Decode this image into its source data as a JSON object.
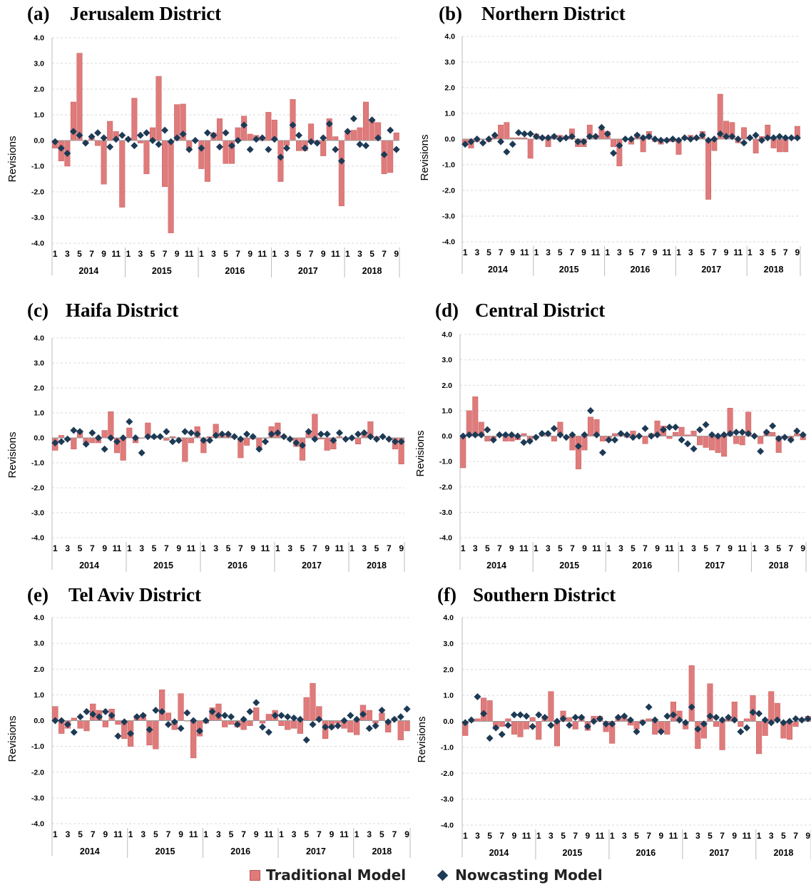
{
  "legend": {
    "traditional": "Traditional Model",
    "nowcasting": "Nowcasting Model"
  },
  "colors": {
    "bar": "#e07b7b",
    "bar_edge": "#c65b5b",
    "marker": "#1d3a55"
  },
  "chart_data": [
    {
      "type": "bar",
      "letter": "(a)",
      "title": "Jerusalem District",
      "ylabel": "Revisions",
      "ylim": [
        -4,
        4
      ],
      "ticks": [
        "4.0",
        "3.0",
        "2.0",
        "1.0",
        "0.0",
        "-1.0",
        "-2.0",
        "-3.0",
        "-4.0"
      ],
      "month_labels": [
        "1",
        "3",
        "5",
        "7",
        "9",
        "11"
      ],
      "years": [
        "2014",
        "2015",
        "2016",
        "2017",
        "2018"
      ],
      "series": [
        {
          "name": "Traditional Model",
          "values": [
            -0.3,
            -0.8,
            -1.0,
            1.5,
            3.4,
            -0.1,
            0.1,
            -0.2,
            -1.7,
            0.75,
            0.35,
            -2.6,
            0.1,
            1.65,
            -0.1,
            -1.3,
            0.5,
            2.5,
            -1.8,
            -3.6,
            1.4,
            1.42,
            -0.3,
            0.0,
            -1.1,
            -1.6,
            0.3,
            0.85,
            -0.9,
            -0.9,
            0.5,
            0.95,
            0.25,
            0.2,
            0.1,
            1.1,
            0.8,
            -1.6,
            -0.2,
            1.6,
            -0.4,
            -0.4,
            0.65,
            -0.1,
            -0.6,
            0.85,
            0.15,
            -2.55,
            0.3,
            0.4,
            0.5,
            1.5,
            0.8,
            0.7,
            -1.3,
            -1.25,
            0.3
          ]
        },
        {
          "name": "Nowcasting Model",
          "values": [
            -0.05,
            -0.3,
            -0.5,
            0.35,
            0.2,
            -0.1,
            0.15,
            0.3,
            0.1,
            -0.25,
            0.05,
            0.2,
            0.05,
            -0.2,
            0.2,
            0.3,
            0.0,
            -0.15,
            0.4,
            -0.05,
            0.1,
            0.25,
            -0.35,
            0.0,
            -0.3,
            0.3,
            0.2,
            -0.25,
            0.3,
            -0.2,
            0.0,
            0.6,
            -0.35,
            0.05,
            0.1,
            -0.35,
            0.05,
            -0.65,
            -0.3,
            0.6,
            0.2,
            -0.3,
            -0.05,
            -0.1,
            0.1,
            0.65,
            -0.35,
            -0.8,
            0.35,
            0.85,
            -0.15,
            -0.2,
            0.8,
            0.1,
            -0.55,
            0.4,
            -0.35
          ]
        }
      ]
    },
    {
      "type": "bar",
      "letter": "(b)",
      "title": "Northern District",
      "ylabel": "Revisions",
      "ylim": [
        -4,
        4
      ],
      "ticks": [
        "4.0",
        "3.0",
        "2.0",
        "1.0",
        "0.0",
        "-1.0",
        "-2.0",
        "-3.0",
        "-4.0"
      ],
      "month_labels": [
        "1",
        "3",
        "5",
        "7",
        "9",
        "11"
      ],
      "years": [
        "2014",
        "2015",
        "2016",
        "2017",
        "2018"
      ],
      "series": [
        {
          "name": "Traditional Model",
          "values": [
            -0.2,
            -0.35,
            -0.1,
            0.0,
            -0.1,
            0.1,
            0.55,
            0.65,
            0.05,
            0.05,
            0.05,
            -0.75,
            0.2,
            0.1,
            -0.3,
            0.15,
            0.15,
            0.1,
            0.4,
            -0.3,
            -0.3,
            0.55,
            0.15,
            0.45,
            0.3,
            -0.3,
            -1.05,
            0.0,
            -0.2,
            0.2,
            -0.5,
            0.3,
            -0.1,
            -0.2,
            -0.1,
            -0.1,
            -0.6,
            0.0,
            0.15,
            0.0,
            0.3,
            -2.35,
            -0.45,
            1.75,
            0.7,
            0.65,
            -0.15,
            0.45,
            0.05,
            -0.55,
            0.1,
            0.55,
            -0.35,
            -0.5,
            -0.5,
            0.05,
            0.5
          ]
        },
        {
          "name": "Nowcasting Model",
          "values": [
            -0.2,
            -0.1,
            0.0,
            -0.15,
            0.0,
            0.15,
            -0.1,
            -0.5,
            -0.2,
            0.25,
            0.2,
            0.2,
            0.1,
            0.05,
            0.05,
            0.1,
            0.0,
            0.05,
            0.1,
            -0.1,
            -0.1,
            0.1,
            0.1,
            0.45,
            0.2,
            -0.55,
            -0.25,
            0.0,
            0.0,
            0.15,
            0.05,
            0.1,
            0.0,
            -0.05,
            -0.05,
            0.0,
            -0.05,
            0.05,
            0.0,
            0.05,
            0.15,
            -0.05,
            0.0,
            0.2,
            0.1,
            0.1,
            0.0,
            -0.15,
            0.05,
            0.15,
            -0.05,
            0.05,
            0.05,
            0.1,
            0.05,
            0.05,
            0.05
          ]
        }
      ]
    },
    {
      "type": "bar",
      "letter": "(c)",
      "title": "Haifa District",
      "ylabel": "Revisions",
      "ylim": [
        -4,
        4
      ],
      "ticks": [
        "4.0",
        "3.0",
        "2.0",
        "1.0",
        "0.0",
        "-1.0",
        "-2.0",
        "-3.0",
        "-4.0"
      ],
      "month_labels": [
        "1",
        "3",
        "5",
        "7",
        "9",
        "11"
      ],
      "years": [
        "2014",
        "2015",
        "2016",
        "2017",
        "2018"
      ],
      "series": [
        {
          "name": "Traditional Model",
          "values": [
            -0.5,
            0.1,
            -0.1,
            -0.45,
            0.3,
            -0.2,
            -0.2,
            -0.2,
            0.3,
            1.05,
            -0.6,
            -0.9,
            0.4,
            -0.2,
            0.0,
            0.6,
            0.0,
            0.05,
            -0.1,
            0.05,
            0.0,
            -0.95,
            -0.2,
            0.45,
            -0.6,
            0.05,
            0.55,
            0.1,
            0.15,
            0.05,
            -0.8,
            -0.3,
            -0.05,
            -0.4,
            0.0,
            0.45,
            0.6,
            0.05,
            -0.1,
            -0.35,
            -0.9,
            0.2,
            0.95,
            -0.05,
            -0.5,
            -0.45,
            0.05,
            0.0,
            -0.05,
            -0.25,
            0.15,
            0.65,
            0.05,
            0.05,
            0.0,
            -0.45,
            -1.05
          ]
        },
        {
          "name": "Nowcasting Model",
          "values": [
            -0.2,
            -0.15,
            -0.05,
            0.3,
            0.25,
            -0.25,
            0.2,
            0.0,
            -0.45,
            0.0,
            -0.15,
            0.0,
            0.65,
            0.0,
            -0.6,
            0.05,
            0.05,
            0.05,
            0.25,
            -0.15,
            -0.1,
            0.25,
            0.2,
            0.15,
            -0.1,
            -0.1,
            0.1,
            0.15,
            0.15,
            0.05,
            -0.05,
            0.15,
            0.05,
            -0.45,
            -0.15,
            0.15,
            0.2,
            0.05,
            -0.05,
            -0.2,
            -0.3,
            0.25,
            -0.05,
            0.15,
            0.15,
            -0.1,
            0.2,
            -0.05,
            0.0,
            0.15,
            0.2,
            0.05,
            -0.05,
            0.05,
            -0.05,
            -0.15,
            -0.15
          ]
        }
      ]
    },
    {
      "type": "bar",
      "letter": "(d)",
      "title": "Central District",
      "ylabel": "Revisions",
      "ylim": [
        -4,
        4
      ],
      "ticks": [
        "4.0",
        "3.0",
        "2.0",
        "1.0",
        "0.0",
        "-1.0",
        "-2.0",
        "-3.0",
        "-4.0"
      ],
      "month_labels": [
        "1",
        "3",
        "5",
        "7",
        "9",
        "11"
      ],
      "years": [
        "2014",
        "2015",
        "2016",
        "2017",
        "2018"
      ],
      "series": [
        {
          "name": "Traditional Model",
          "values": [
            -1.25,
            1.0,
            1.55,
            0.55,
            -0.2,
            -0.1,
            0.05,
            -0.2,
            -0.2,
            -0.15,
            0.1,
            -0.2,
            0.0,
            0.1,
            0.1,
            -0.2,
            0.55,
            -0.05,
            -0.55,
            -1.3,
            -0.55,
            0.75,
            0.65,
            -0.2,
            -0.2,
            0.1,
            0.1,
            -0.05,
            0.2,
            0.0,
            -0.3,
            0.1,
            0.6,
            0.4,
            -0.1,
            0.15,
            0.35,
            0.05,
            0.2,
            -0.35,
            -0.45,
            -0.55,
            -0.65,
            -0.8,
            1.1,
            -0.3,
            -0.35,
            0.95,
            0.05,
            -0.3,
            0.2,
            0.15,
            -0.65,
            -0.05,
            -0.2,
            0.1,
            -0.15
          ]
        },
        {
          "name": "Nowcasting Model",
          "values": [
            0.0,
            0.05,
            0.05,
            0.05,
            0.25,
            -0.15,
            0.05,
            0.05,
            0.05,
            0.0,
            -0.25,
            -0.2,
            -0.05,
            0.1,
            0.1,
            0.3,
            0.05,
            -0.05,
            0.05,
            -0.4,
            0.05,
            1.0,
            0.05,
            -0.65,
            -0.15,
            -0.15,
            0.1,
            0.05,
            -0.05,
            0.0,
            0.3,
            0.0,
            0.05,
            0.25,
            0.35,
            0.35,
            -0.15,
            -0.3,
            -0.5,
            0.25,
            0.45,
            0.05,
            0.0,
            0.05,
            0.1,
            0.15,
            0.15,
            0.1,
            0.0,
            -0.6,
            0.15,
            0.4,
            -0.1,
            -0.05,
            -0.15,
            0.2,
            0.05
          ]
        }
      ]
    },
    {
      "type": "bar",
      "letter": "(e)",
      "title": "Tel Aviv District",
      "ylabel": "Revisions",
      "ylim": [
        -4,
        4
      ],
      "ticks": [
        "4.0",
        "3.0",
        "2.0",
        "1.0",
        "0.0",
        "-1.0",
        "-2.0",
        "-3.0",
        "-4.0"
      ],
      "month_labels": [
        "1",
        "3",
        "5",
        "7",
        "9",
        "11"
      ],
      "years": [
        "2014",
        "2015",
        "2016",
        "2017",
        "2018"
      ],
      "series": [
        {
          "name": "Traditional Model",
          "values": [
            0.55,
            -0.5,
            -0.3,
            0.1,
            -0.3,
            -0.4,
            0.65,
            0.4,
            -0.25,
            0.45,
            -0.15,
            -0.7,
            -1.0,
            0.2,
            0.25,
            -0.95,
            -1.1,
            1.2,
            0.3,
            -0.35,
            1.05,
            0.0,
            -1.45,
            -0.6,
            -0.1,
            0.5,
            0.65,
            -0.25,
            -0.15,
            -0.25,
            -0.35,
            -0.2,
            0.5,
            -0.1,
            0.25,
            0.4,
            -0.2,
            -0.35,
            -0.3,
            -0.5,
            0.9,
            1.45,
            0.55,
            -0.7,
            -0.3,
            -0.1,
            -0.3,
            -0.45,
            -0.55,
            0.6,
            0.4,
            -0.1,
            0.3,
            -0.45,
            0.1,
            -0.75,
            -0.4
          ]
        },
        {
          "name": "Nowcasting Model",
          "values": [
            0.0,
            0.0,
            -0.15,
            -0.45,
            0.15,
            0.35,
            0.25,
            0.15,
            0.35,
            0.2,
            -0.6,
            -0.05,
            -0.5,
            0.15,
            0.2,
            -0.35,
            0.4,
            0.35,
            -0.15,
            -0.05,
            -0.3,
            0.3,
            0.0,
            -0.4,
            0.0,
            0.35,
            0.2,
            0.2,
            0.15,
            -0.15,
            0.05,
            0.35,
            0.7,
            -0.25,
            -0.45,
            0.2,
            0.2,
            0.15,
            0.1,
            0.05,
            -0.75,
            -0.15,
            0.05,
            -0.25,
            -0.25,
            -0.2,
            0.0,
            0.2,
            0.05,
            0.25,
            -0.3,
            -0.2,
            0.4,
            -0.05,
            0.05,
            0.15,
            0.45
          ]
        }
      ]
    },
    {
      "type": "bar",
      "letter": "(f)",
      "title": "Southern District",
      "ylabel": "Revisions",
      "ylim": [
        -4,
        4
      ],
      "ticks": [
        "4.0",
        "3.0",
        "2.0",
        "1.0",
        "0.0",
        "-1.0",
        "-2.0",
        "-3.0",
        "-4.0"
      ],
      "month_labels": [
        "1",
        "3",
        "5",
        "7",
        "9",
        "11"
      ],
      "years": [
        "2014",
        "2015",
        "2016",
        "2017",
        "2018"
      ],
      "series": [
        {
          "name": "Traditional Model",
          "values": [
            -0.55,
            0.0,
            0.1,
            0.9,
            0.8,
            -0.3,
            -0.2,
            0.1,
            -0.5,
            -0.6,
            -0.3,
            0.15,
            -0.7,
            0.2,
            1.15,
            -0.95,
            0.4,
            0.15,
            -0.3,
            0.2,
            -0.35,
            0.2,
            0.2,
            -0.4,
            -0.85,
            0.2,
            0.15,
            -0.15,
            -0.3,
            0.05,
            0.1,
            -0.5,
            -0.4,
            -0.5,
            0.75,
            0.4,
            -0.3,
            2.15,
            -1.05,
            -0.65,
            1.45,
            -0.2,
            -1.1,
            0.1,
            0.75,
            -0.2,
            0.1,
            1.0,
            -1.25,
            -0.55,
            1.15,
            0.7,
            -0.65,
            -0.7,
            -0.2,
            0.1,
            0.2
          ]
        },
        {
          "name": "Nowcasting Model",
          "values": [
            -0.05,
            0.05,
            0.95,
            0.3,
            -0.65,
            -0.25,
            -0.5,
            -0.15,
            0.25,
            0.25,
            0.2,
            -0.2,
            0.25,
            0.15,
            -0.15,
            0.0,
            0.1,
            -0.15,
            0.15,
            0.15,
            -0.2,
            0.0,
            0.1,
            -0.1,
            -0.1,
            0.15,
            0.2,
            0.05,
            -0.4,
            -0.05,
            0.55,
            0.05,
            -0.4,
            0.2,
            0.25,
            0.05,
            -0.05,
            0.55,
            -0.3,
            -0.1,
            0.2,
            0.15,
            0.05,
            0.15,
            0.05,
            -0.4,
            -0.25,
            0.35,
            0.3,
            0.05,
            -0.05,
            0.05,
            -0.05,
            0.0,
            0.1,
            0.05,
            0.1
          ]
        }
      ]
    }
  ]
}
